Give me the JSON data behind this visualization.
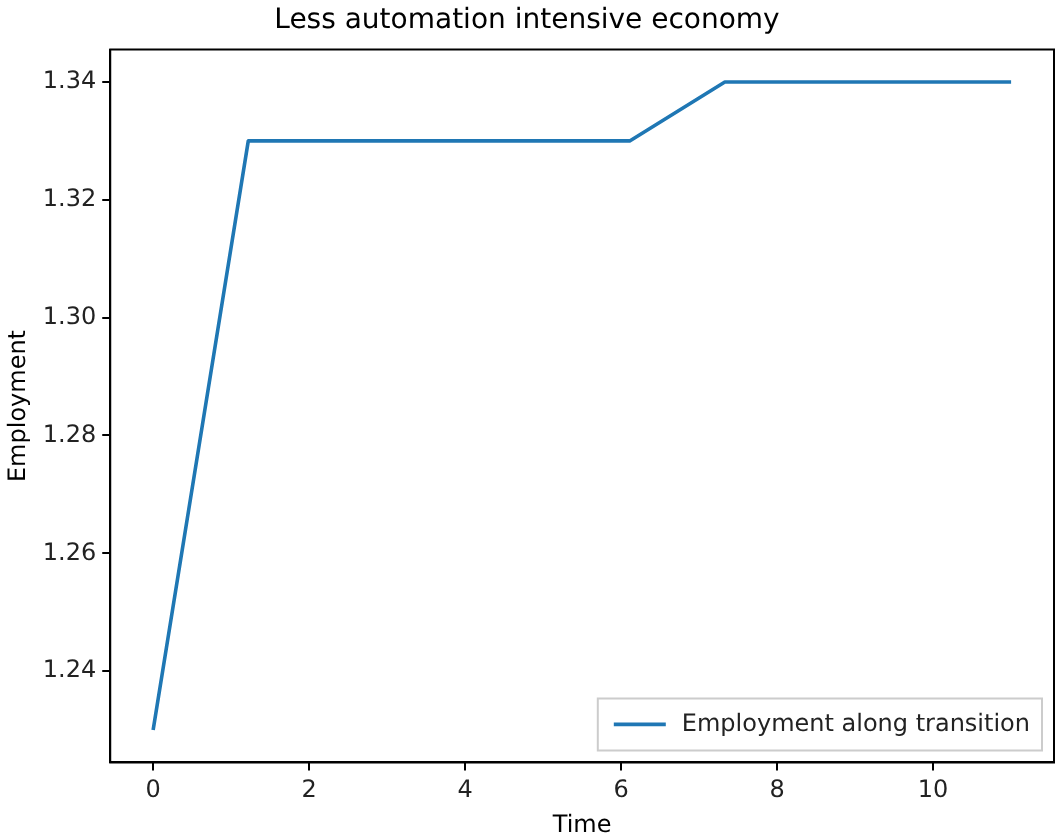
{
  "chart_data": {
    "type": "line",
    "title": "Less automation intensive economy",
    "xlabel": "Time",
    "ylabel": "Employment",
    "x": [
      0,
      1.22,
      2.44,
      3.67,
      4.89,
      6.11,
      7.33,
      8.56,
      9.78,
      11
    ],
    "series": [
      {
        "name": "Employment along transition",
        "color": "#1f77b4",
        "values": [
          1.23,
          1.33,
          1.33,
          1.33,
          1.33,
          1.33,
          1.34,
          1.34,
          1.34,
          1.34
        ]
      }
    ],
    "xlim": [
      -0.55,
      11.55
    ],
    "xticks": [
      0,
      2,
      4,
      6,
      8,
      10
    ],
    "ylim": [
      1.2245,
      1.3455
    ],
    "yticks": [
      1.24,
      1.26,
      1.28,
      {
        "value": 1.3,
        "label": "1.30"
      },
      1.32,
      1.34
    ],
    "legend": "bottom right",
    "grid": false,
    "marker": "none",
    "line_style": "solid"
  }
}
